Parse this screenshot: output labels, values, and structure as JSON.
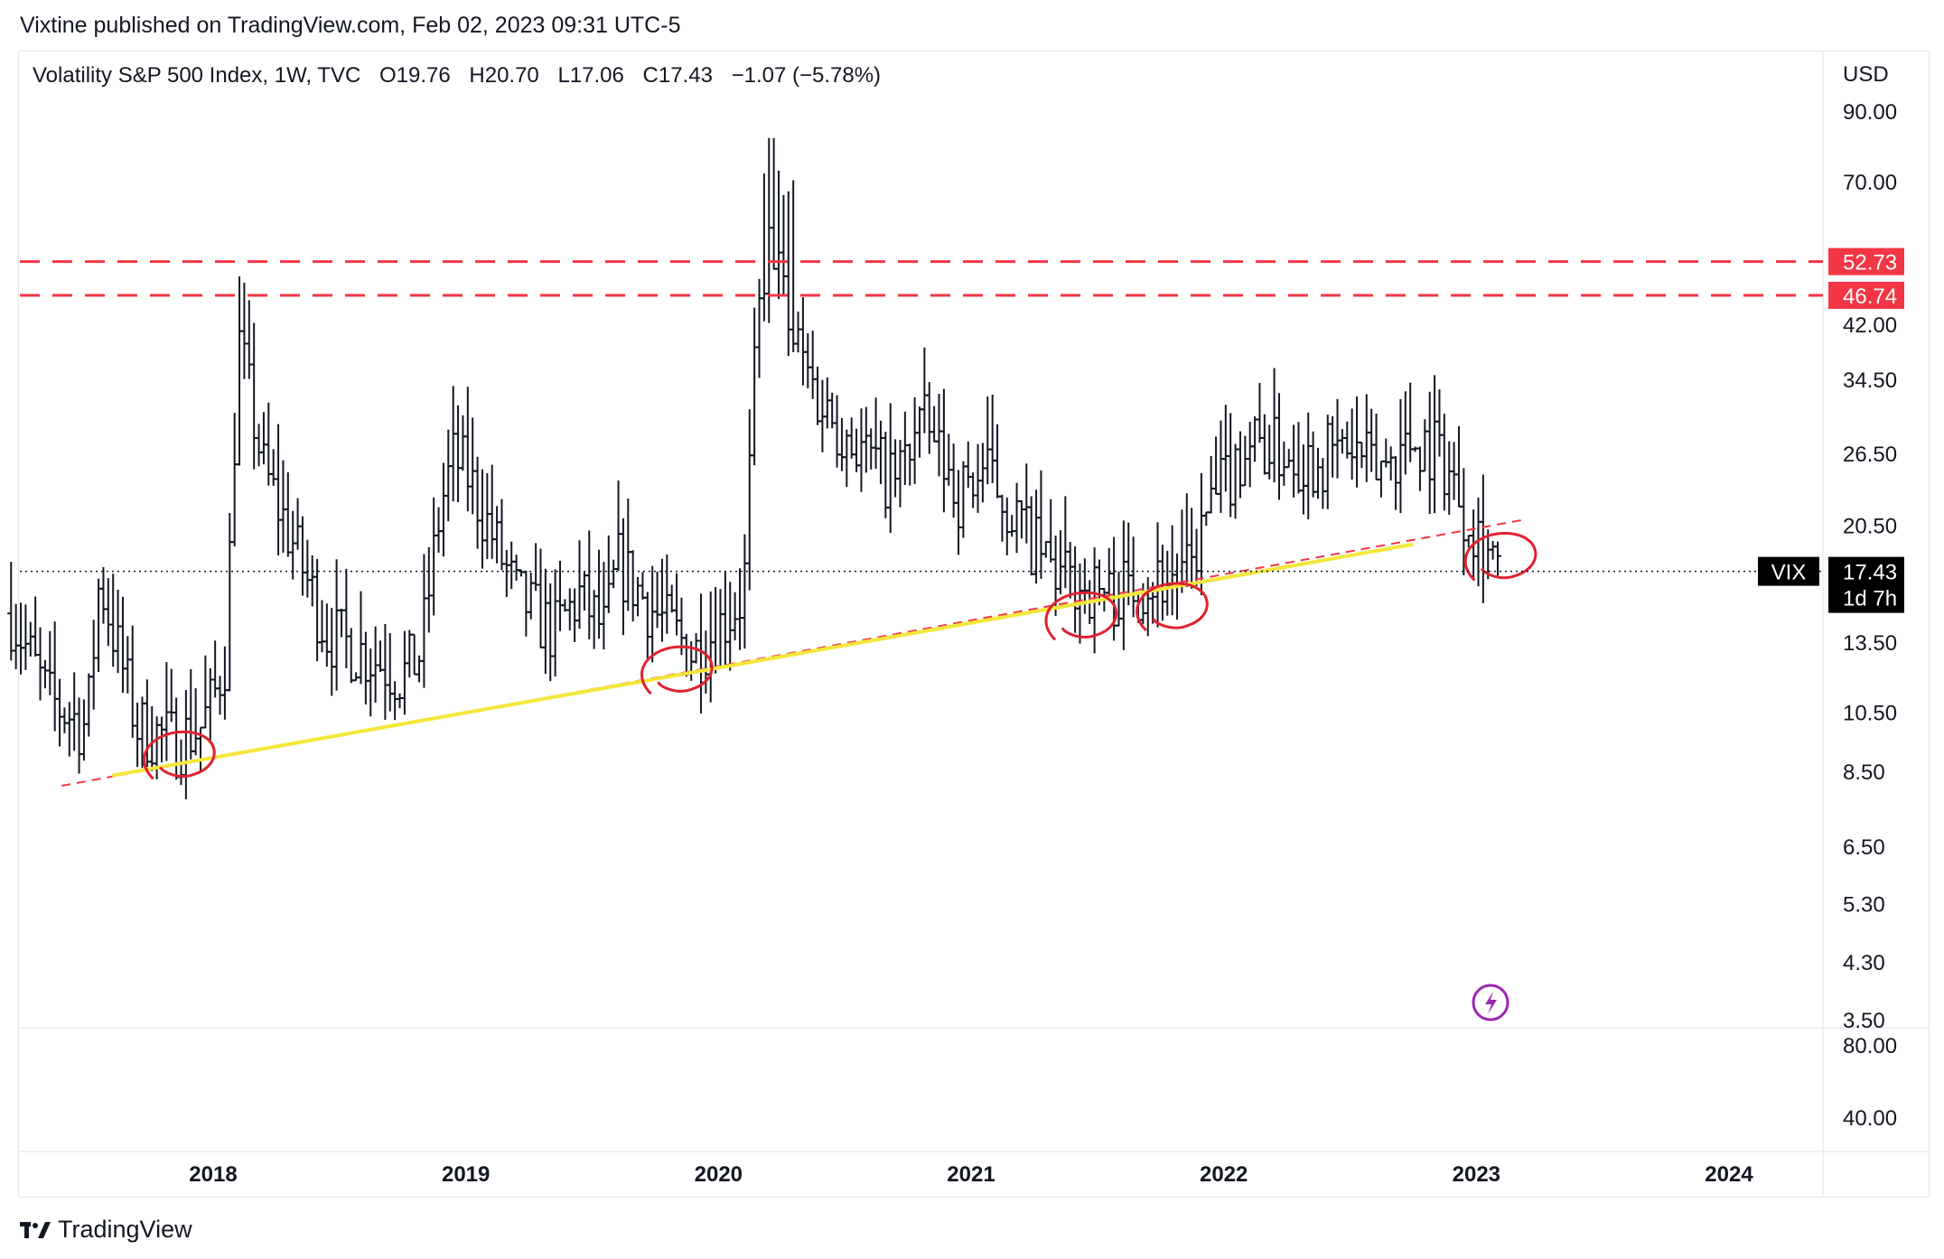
{
  "header": {
    "published_line": "Vixtine published on TradingView.com, Feb 02, 2023 09:31 UTC-5"
  },
  "legend": {
    "symbol": "Volatility S&P 500 Index, 1W, TVC",
    "open": "O19.76",
    "high": "H20.70",
    "low": "L17.06",
    "close": "C17.43",
    "change": "−1.07 (−5.78%)"
  },
  "footer": {
    "brand": "TradingView"
  },
  "colors": {
    "support_line": "#f5e63a",
    "dashed": "#f23645",
    "bars": "#131722"
  },
  "chart_data": {
    "type": "ohlc-bar",
    "title": "Volatility S&P 500 Index, 1W, TVC",
    "y_scale": "log",
    "currency": "USD",
    "ylim": [
      3.5,
      100
    ],
    "y_ticks": [
      "90.00",
      "70.00",
      "42.00",
      "34.50",
      "26.50",
      "20.50",
      "13.50",
      "10.50",
      "8.50",
      "6.50",
      "5.30",
      "4.30",
      "3.50"
    ],
    "y_ticks_values": [
      90,
      70,
      42,
      34.5,
      26.5,
      20.5,
      13.5,
      10.5,
      8.5,
      6.5,
      5.3,
      4.3,
      3.5
    ],
    "x_ticks": [
      "2018",
      "2019",
      "2020",
      "2021",
      "2022",
      "2023",
      "2024"
    ],
    "x_ticks_values": [
      2018,
      2019,
      2020,
      2021,
      2022,
      2023,
      2024
    ],
    "xlim": [
      2017.2,
      2024.35
    ],
    "lower_pane": {
      "ticks": [
        "80.00",
        "40.00"
      ]
    },
    "horizontal_levels": [
      {
        "value": 52.73,
        "label": "52.73"
      },
      {
        "value": 46.74,
        "label": "46.74"
      }
    ],
    "current_price": {
      "symbol": "VIX",
      "value": 17.43,
      "label": "17.43",
      "countdown": "1d 7h"
    },
    "support_line": {
      "start": [
        2017.6,
        8.4
      ],
      "end": [
        2022.75,
        19.2
      ]
    },
    "dashed_trend": {
      "start": [
        2017.4,
        8.1
      ],
      "end": [
        2023.2,
        21.0
      ]
    },
    "highlighted_lows": [
      {
        "x": 2017.87,
        "y": 9.0
      },
      {
        "x": 2019.84,
        "y": 12.2
      },
      {
        "x": 2021.44,
        "y": 14.8
      },
      {
        "x": 2021.8,
        "y": 15.3
      },
      {
        "x": 2023.1,
        "y": 18.3
      }
    ],
    "anchors": [
      [
        2017.2,
        15
      ],
      [
        2017.35,
        11
      ],
      [
        2017.5,
        10
      ],
      [
        2017.55,
        17
      ],
      [
        2017.7,
        10
      ],
      [
        2017.85,
        9.5
      ],
      [
        2017.95,
        10
      ],
      [
        2018.0,
        11
      ],
      [
        2018.05,
        13
      ],
      [
        2018.1,
        40
      ],
      [
        2018.2,
        25
      ],
      [
        2018.3,
        20
      ],
      [
        2018.45,
        14
      ],
      [
        2018.6,
        13
      ],
      [
        2018.75,
        12
      ],
      [
        2018.82,
        13
      ],
      [
        2018.9,
        22
      ],
      [
        2018.95,
        26
      ],
      [
        2019.0,
        25
      ],
      [
        2019.2,
        16
      ],
      [
        2019.35,
        14
      ],
      [
        2019.45,
        16
      ],
      [
        2019.55,
        14
      ],
      [
        2019.6,
        18
      ],
      [
        2019.75,
        15
      ],
      [
        2019.9,
        13
      ],
      [
        2019.98,
        14
      ],
      [
        2020.1,
        16
      ],
      [
        2020.15,
        40
      ],
      [
        2020.2,
        60
      ],
      [
        2020.28,
        42
      ],
      [
        2020.4,
        32
      ],
      [
        2020.6,
        26
      ],
      [
        2020.7,
        24
      ],
      [
        2020.8,
        30
      ],
      [
        2020.95,
        23
      ],
      [
        2021.05,
        25
      ],
      [
        2021.15,
        22
      ],
      [
        2021.25,
        19
      ],
      [
        2021.35,
        17
      ],
      [
        2021.55,
        16
      ],
      [
        2021.7,
        17
      ],
      [
        2021.85,
        17
      ],
      [
        2021.95,
        22
      ],
      [
        2022.1,
        28
      ],
      [
        2022.2,
        27
      ],
      [
        2022.35,
        26
      ],
      [
        2022.5,
        27
      ],
      [
        2022.6,
        25
      ],
      [
        2022.75,
        28
      ],
      [
        2022.85,
        27
      ],
      [
        2022.95,
        22
      ],
      [
        2023.05,
        19
      ],
      [
        2023.09,
        17.5
      ]
    ]
  }
}
